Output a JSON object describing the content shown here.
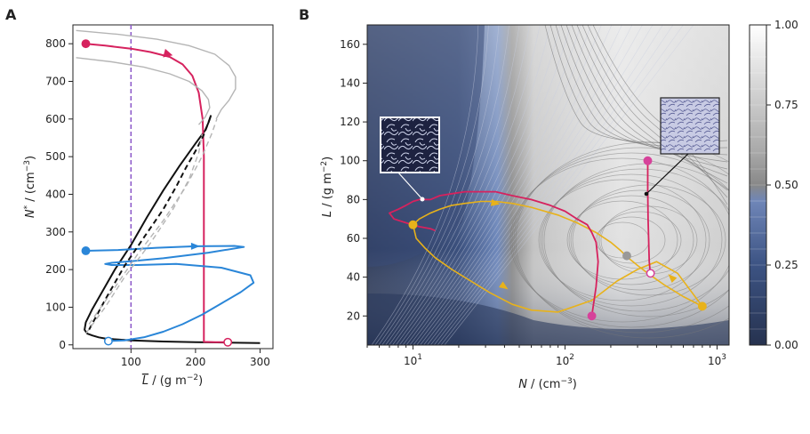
{
  "chart_data": [
    {
      "panel": "A",
      "type": "line",
      "xlabel_base": "L",
      "xlabel_unit": " / (g m",
      "xlabel_exp": "−2",
      "ylabel_base": "N",
      "ylabel_star": "*",
      "ylabel_unit": " / (cm",
      "ylabel_exp": "−3",
      "xlim": [
        10,
        320
      ],
      "ylim": [
        -10,
        850
      ],
      "xticks": [
        100,
        200,
        300
      ],
      "yticks": [
        0,
        100,
        200,
        300,
        400,
        500,
        600,
        700,
        800
      ],
      "vline_x": 100,
      "series": [
        {
          "role": "stable-branch",
          "color": "#111111",
          "x": [
            300,
            250,
            200,
            150,
            100,
            80,
            60,
            50,
            40,
            32,
            28,
            30,
            40,
            55,
            75,
            100,
            125,
            150,
            175,
            200,
            215,
            220,
            224
          ],
          "y": [
            5,
            6,
            7,
            9,
            12,
            14,
            17,
            20,
            25,
            30,
            40,
            60,
            95,
            140,
            200,
            265,
            340,
            410,
            475,
            535,
            570,
            590,
            610
          ]
        },
        {
          "role": "pink-trajectory",
          "color": "#d6225e",
          "x": [
            30,
            60,
            100,
            130,
            160,
            180,
            195,
            205,
            211,
            213,
            213,
            213,
            230,
            250
          ],
          "y": [
            800,
            795,
            787,
            778,
            765,
            745,
            715,
            670,
            600,
            500,
            300,
            8,
            7,
            7
          ]
        },
        {
          "role": "blue-trajectory",
          "color": "#2a86d8",
          "x": [
            30,
            80,
            140,
            200,
            260,
            275,
            220,
            150,
            100,
            70,
            60,
            70,
            110,
            170,
            240,
            285,
            290,
            270,
            240,
            210,
            180,
            150,
            120,
            90,
            65
          ],
          "y": [
            250,
            252,
            258,
            262,
            263,
            260,
            245,
            230,
            222,
            218,
            215,
            212,
            212,
            215,
            205,
            185,
            165,
            140,
            110,
            80,
            55,
            35,
            20,
            12,
            10
          ]
        },
        {
          "role": "grey-outer",
          "color": "#b5b5b5",
          "x": [
            15,
            80,
            140,
            190,
            230,
            252,
            262,
            262,
            252,
            240,
            232
          ],
          "y": [
            835,
            825,
            812,
            795,
            772,
            742,
            712,
            680,
            650,
            625,
            600
          ]
        },
        {
          "role": "grey-inner",
          "color": "#b5b5b5",
          "x": [
            15,
            70,
            120,
            160,
            190,
            210,
            220,
            222,
            215,
            205
          ],
          "y": [
            763,
            752,
            738,
            720,
            700,
            675,
            652,
            630,
            605,
            585
          ]
        }
      ],
      "dashed_series": [
        {
          "role": "unstable-black",
          "color": "#111111",
          "x": [
            35,
            60,
            90,
            120,
            150,
            170,
            185,
            200,
            212,
            220,
            224
          ],
          "y": [
            40,
            120,
            210,
            285,
            360,
            420,
            470,
            515,
            555,
            590,
            610
          ]
        },
        {
          "role": "unstable-grey-1",
          "color": "#b5b5b5",
          "x": [
            35,
            70,
            110,
            150,
            185,
            210,
            225,
            233
          ],
          "y": [
            55,
            140,
            240,
            330,
            420,
            500,
            560,
            600
          ]
        },
        {
          "role": "unstable-grey-2",
          "color": "#b5b5b5",
          "x": [
            30,
            60,
            90,
            130,
            165,
            190,
            205,
            210
          ],
          "y": [
            30,
            100,
            180,
            270,
            360,
            440,
            510,
            560
          ]
        }
      ],
      "markers": [
        {
          "x": 30,
          "y": 800,
          "color": "#d6225e",
          "filled": true
        },
        {
          "x": 250,
          "y": 7,
          "color": "#d6225e",
          "filled": false
        },
        {
          "x": 30,
          "y": 250,
          "color": "#2a86d8",
          "filled": true
        },
        {
          "x": 65,
          "y": 10,
          "color": "#2a86d8",
          "filled": false
        }
      ]
    },
    {
      "panel": "B",
      "type": "heatmap",
      "xscale": "log",
      "xlim": [
        5,
        1200
      ],
      "ylim": [
        5,
        170
      ],
      "xtick_values": [
        10,
        100,
        1000
      ],
      "xtick_base": "10",
      "xtick_exps": [
        "1",
        "2",
        "3"
      ],
      "yticks": [
        20,
        40,
        60,
        80,
        100,
        120,
        140,
        160
      ],
      "xlabel_base": "N",
      "xlabel_unit": " / (cm",
      "xlabel_exp": "−3",
      "ylabel_base": "L",
      "ylabel_unit": " / (g m",
      "ylabel_exp": "−2",
      "colorbar": {
        "min": 0,
        "max": 1,
        "ticks": [
          "0.00",
          "0.25",
          "0.50",
          "0.75",
          "1.00"
        ],
        "low_color": "#26324f",
        "mid_color": "#6f86b8",
        "high_color": "#ffffff"
      },
      "series": [
        {
          "role": "yellow-trajectory",
          "color": "#e8b21a",
          "x": [
            800,
            600,
            450,
            350,
            300,
            260,
            230,
            200,
            160,
            120,
            90,
            60,
            45,
            35,
            28,
            22,
            18,
            15,
            13,
            11,
            10,
            10.5,
            12,
            14,
            18,
            24,
            32,
            45,
            60,
            90,
            150,
            220,
            300,
            400,
            550,
            800
          ],
          "y": [
            25,
            30,
            36,
            42,
            46,
            50,
            54,
            58,
            63,
            68,
            72,
            76,
            78,
            79,
            79,
            78,
            77,
            75,
            73,
            70,
            67,
            60,
            55,
            50,
            44,
            38,
            32,
            26,
            23,
            22,
            28,
            38,
            44,
            48,
            42,
            25
          ]
        },
        {
          "role": "pink-trajectory",
          "color": "#d6225e",
          "x": [
            150,
            160,
            165,
            160,
            150,
            140,
            120,
            100,
            80,
            60,
            45,
            35,
            28,
            22,
            18,
            15,
            13,
            11,
            10,
            9,
            8,
            7,
            7.5,
            9,
            11,
            13,
            14
          ],
          "y": [
            20,
            35,
            48,
            58,
            63,
            67,
            70,
            74,
            77,
            80,
            82,
            84,
            84,
            84,
            83,
            82,
            80,
            80,
            79,
            77,
            75,
            73,
            70,
            68,
            66,
            65,
            64
          ]
        },
        {
          "role": "pink-vertical",
          "color": "#d6225e",
          "x": [
            350,
            350,
            352,
            355,
            358,
            362,
            365
          ],
          "y": [
            100,
            85,
            70,
            58,
            48,
            44,
            42
          ]
        }
      ],
      "markers": [
        {
          "x": 150,
          "y": 20,
          "color": "#d6429a",
          "filled": true
        },
        {
          "x": 350,
          "y": 100,
          "color": "#d6429a",
          "filled": true
        },
        {
          "x": 365,
          "y": 42,
          "color": "#d6429a",
          "filled": false
        },
        {
          "x": 10,
          "y": 67,
          "color": "#e8b21a",
          "filled": true
        },
        {
          "x": 800,
          "y": 25,
          "color": "#e8b21a",
          "filled": true
        },
        {
          "x": 255,
          "y": 51,
          "color": "#999999",
          "filled": true
        }
      ],
      "insets": [
        {
          "role": "cloud-field-dark",
          "anchor_x": 11,
          "anchor_y": 79
        },
        {
          "role": "cloud-field-light",
          "anchor_x": 350,
          "anchor_y": 87
        }
      ]
    }
  ],
  "labels": {
    "panel_a": "A",
    "panel_b": "B"
  }
}
